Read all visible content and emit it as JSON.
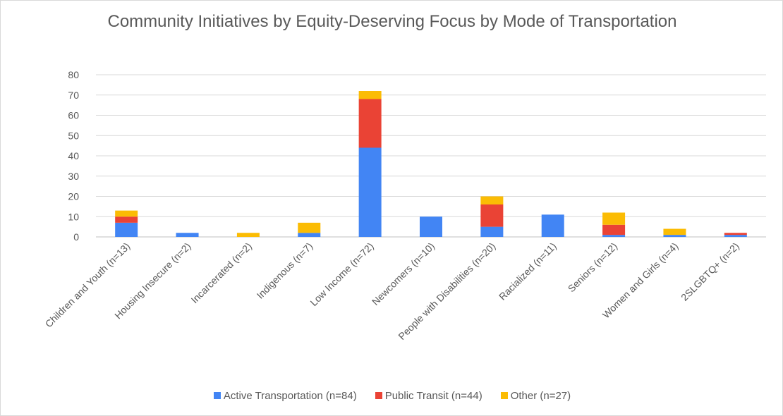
{
  "chart_data": {
    "type": "bar",
    "stacked": true,
    "title": "Community Initiatives by Equity-Deserving Focus by Mode of Transportation",
    "xlabel": "",
    "ylabel": "",
    "ylim": [
      0,
      80
    ],
    "yticks": [
      0,
      10,
      20,
      30,
      40,
      50,
      60,
      70,
      80
    ],
    "grid": true,
    "legend_position": "bottom",
    "categories": [
      "Children and Youth (n=13)",
      "Housing Insecure (n=2)",
      "Incarcerated (n=2)",
      "Indigenous (n=7)",
      "Low Income (n=72)",
      "Newcomers (n=10)",
      "People with Disabilities (n=20)",
      "Racialized (n=11)",
      "Seniors (n=12)",
      "Women and Girls (n=4)",
      "2SLGBTQ+ (n=2)"
    ],
    "series": [
      {
        "name": "Active Transportation (n=84)",
        "color": "#4285f4",
        "values": [
          7,
          2,
          0,
          2,
          44,
          10,
          5,
          11,
          1,
          1,
          1
        ]
      },
      {
        "name": "Public Transit (n=44)",
        "color": "#ea4335",
        "values": [
          3,
          0,
          0,
          0,
          24,
          0,
          11,
          0,
          5,
          0,
          1
        ]
      },
      {
        "name": "Other (n=27)",
        "color": "#fbbc04",
        "values": [
          3,
          0,
          2,
          5,
          4,
          0,
          4,
          0,
          6,
          3,
          0
        ]
      }
    ]
  }
}
